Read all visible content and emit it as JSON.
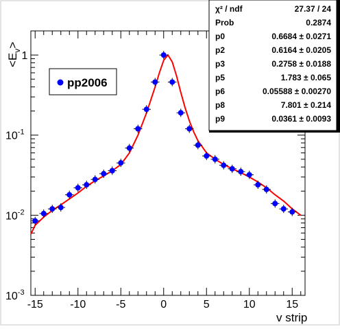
{
  "chart_data": {
    "type": "scatter",
    "title": "",
    "xlabel": "v strip",
    "ylabel": "<E_v>",
    "ylabel_main": "<E",
    "ylabel_sub": "v",
    "ylabel_close": ">",
    "xlim": [
      -15.5,
      16.5
    ],
    "ylim": [
      0.001,
      2.0
    ],
    "yscale": "log",
    "x_ticks": [
      -15,
      -10,
      -5,
      0,
      5,
      10,
      15
    ],
    "x_tick_labels": [
      "-15",
      "-10",
      "-5",
      "0",
      "5",
      "10",
      "15"
    ],
    "y_ticks": [
      0.001,
      0.01,
      0.1,
      1
    ],
    "y_tick_labels": [
      {
        "base": "10",
        "exp": "-3"
      },
      {
        "base": "10",
        "exp": "-2"
      },
      {
        "base": "10",
        "exp": "-1"
      },
      {
        "base": "1",
        "exp": ""
      }
    ],
    "grid": false,
    "legend_position": "top-left",
    "series": [
      {
        "name": "pp2006",
        "color": "#0000ff",
        "x": [
          -15,
          -14,
          -13,
          -12,
          -11,
          -10,
          -9,
          -8,
          -7,
          -6,
          -5,
          -4,
          -3,
          -2,
          -1,
          0,
          1,
          2,
          3,
          4,
          5,
          6,
          7,
          8,
          9,
          10,
          11,
          12,
          13,
          14,
          15
        ],
        "y": [
          0.0085,
          0.0105,
          0.012,
          0.0125,
          0.018,
          0.022,
          0.024,
          0.028,
          0.033,
          0.036,
          0.045,
          0.069,
          0.12,
          0.21,
          0.46,
          1.0,
          0.46,
          0.19,
          0.12,
          0.075,
          0.055,
          0.05,
          0.042,
          0.038,
          0.035,
          0.032,
          0.024,
          0.021,
          0.014,
          0.012,
          0.011
        ]
      }
    ],
    "fit": {
      "color": "#ff0000",
      "x": [
        -15.5,
        -15,
        -14,
        -13,
        -12,
        -11,
        -10,
        -9,
        -8,
        -7,
        -6,
        -5,
        -4,
        -3,
        -2,
        -1,
        -0.5,
        0,
        0.5,
        1,
        1.5,
        2,
        2.5,
        3,
        3.5,
        4,
        5,
        6,
        7,
        8,
        9,
        10,
        11,
        12,
        13,
        14,
        15,
        16
      ],
      "y": [
        0.0058,
        0.0075,
        0.0095,
        0.0115,
        0.0135,
        0.016,
        0.019,
        0.023,
        0.027,
        0.031,
        0.036,
        0.043,
        0.06,
        0.1,
        0.19,
        0.4,
        0.6,
        0.86,
        1.0,
        0.82,
        0.55,
        0.34,
        0.22,
        0.15,
        0.11,
        0.085,
        0.06,
        0.05,
        0.043,
        0.038,
        0.034,
        0.03,
        0.026,
        0.022,
        0.018,
        0.015,
        0.012,
        0.01
      ]
    }
  },
  "stats": {
    "rows": [
      {
        "name": "χ² / ndf",
        "value": "27.37 / 24"
      },
      {
        "name": "Prob",
        "value": "0.2874"
      },
      {
        "name": "p0",
        "value": "0.6684 ± 0.0271"
      },
      {
        "name": "p2",
        "value": "0.6164 ± 0.0205"
      },
      {
        "name": "p3",
        "value": "0.2758 ± 0.0188"
      },
      {
        "name": "p5",
        "value": "1.783 ± 0.065"
      },
      {
        "name": "p6",
        "value": "0.05588 ± 0.00270"
      },
      {
        "name": "p8",
        "value": "7.801 ± 0.214"
      },
      {
        "name": "p9",
        "value": "0.0361 ± 0.0093"
      }
    ]
  },
  "legend": {
    "label": "pp2006"
  },
  "colors": {
    "canvas": "#ffffff",
    "frame": "#000000",
    "marker": "#0000ff",
    "fit": "#ff0000"
  }
}
